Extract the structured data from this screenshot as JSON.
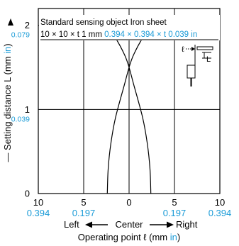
{
  "chart_data": {
    "type": "line",
    "note_line1": "Standard sensing object Iron sheet",
    "note_line2_black": "10 × 10 × t 1 mm ",
    "note_line2_blue": "0.394 × 0.394 × t 0.039 in",
    "ylabel_prefix": "— Setting distance L (mm ",
    "ylabel_unit": "in",
    "ylabel_suffix": ")",
    "y_ticks": [
      {
        "value": 0,
        "label": "0",
        "inch": ""
      },
      {
        "value": 1,
        "label": "1",
        "inch": "0.039"
      },
      {
        "value": 2,
        "label": "2",
        "inch": "0.079"
      }
    ],
    "x_ticks": [
      {
        "value": -10,
        "label": "10",
        "inch": "0.394"
      },
      {
        "value": -5,
        "label": "5",
        "inch": "0.197"
      },
      {
        "value": 0,
        "label": "0",
        "inch": ""
      },
      {
        "value": 5,
        "label": "5",
        "inch": "0.197"
      },
      {
        "value": 10,
        "label": "10",
        "inch": "0.394"
      }
    ],
    "xlim": [
      -10,
      10
    ],
    "ylim": [
      0,
      2.2
    ],
    "direction_left": "Left",
    "direction_center": "Center",
    "direction_right": "Right",
    "xlabel_prefix": "Operating point ℓ (mm ",
    "xlabel_unit": "in",
    "xlabel_suffix": ")",
    "inset_label_l": "ℓ",
    "inset_label_L": "L",
    "series": [
      {
        "x": [
          -2.4,
          -2.3,
          -2.0,
          -1.5,
          -0.5,
          0.0,
          0.5,
          1.5,
          2.3,
          3.1,
          3.8,
          4.4,
          4.9,
          5.3
        ],
        "y": [
          0.0,
          0.3,
          0.6,
          0.9,
          1.3,
          1.5,
          1.65,
          1.85,
          1.95,
          2.0,
          2.02,
          2.05,
          2.08,
          2.1
        ]
      },
      {
        "x": [
          2.4,
          2.3,
          2.0,
          1.5,
          0.5,
          0.0,
          -0.5,
          -1.5,
          -2.3,
          -3.1,
          -3.8,
          -4.4,
          -4.9,
          -5.3
        ],
        "y": [
          0.0,
          0.3,
          0.6,
          0.9,
          1.3,
          1.5,
          1.65,
          1.85,
          1.95,
          2.0,
          2.02,
          2.05,
          2.08,
          2.1
        ]
      }
    ],
    "center_dash_x": 0,
    "center_dash_y": [
      0.0,
      1.5
    ]
  },
  "colors": {
    "blue": "#1a9bd7",
    "black": "#000000"
  }
}
